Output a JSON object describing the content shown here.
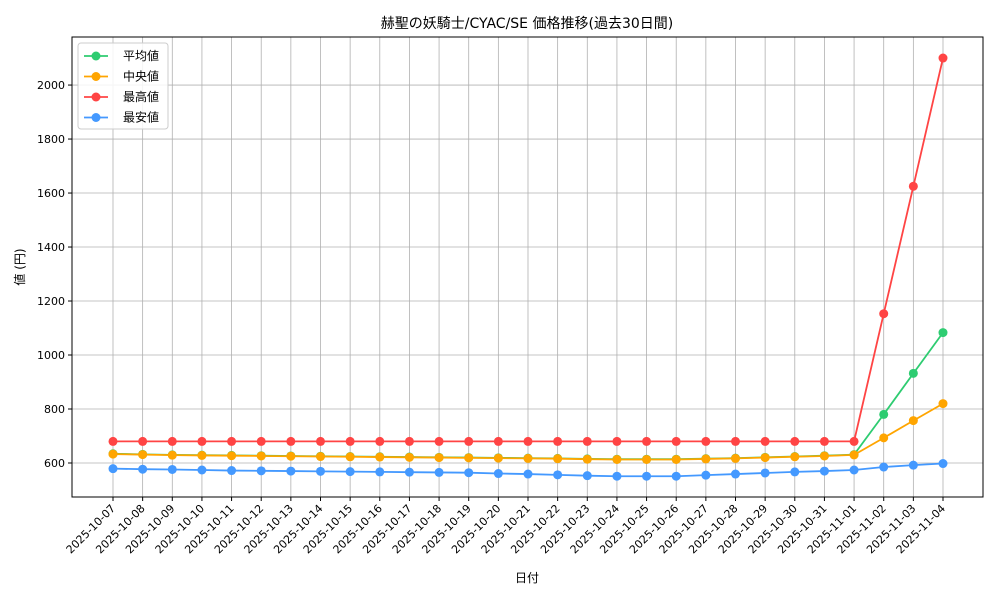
{
  "chart_data": {
    "type": "line",
    "title": "赫聖の妖騎士/CYAC/SE 価格推移(過去30日間)",
    "xlabel": "日付",
    "ylabel": "値 (円)",
    "ylim": [
      474,
      2178
    ],
    "yticks": [
      600,
      800,
      1000,
      1200,
      1400,
      1600,
      1800,
      2000
    ],
    "grid": true,
    "legend_position": "top-left",
    "categories": [
      "2025-10-07",
      "2025-10-08",
      "2025-10-09",
      "2025-10-10",
      "2025-10-11",
      "2025-10-12",
      "2025-10-13",
      "2025-10-14",
      "2025-10-15",
      "2025-10-16",
      "2025-10-17",
      "2025-10-18",
      "2025-10-19",
      "2025-10-20",
      "2025-10-21",
      "2025-10-22",
      "2025-10-23",
      "2025-10-24",
      "2025-10-25",
      "2025-10-26",
      "2025-10-27",
      "2025-10-28",
      "2025-10-29",
      "2025-10-30",
      "2025-10-31",
      "2025-11-01",
      "2025-11-02",
      "2025-11-03",
      "2025-11-04"
    ],
    "series": [
      {
        "name": "平均値",
        "color": "#2ecc71",
        "values": [
          634,
          632,
          630,
          629,
          628,
          627,
          626,
          625,
          624,
          623,
          622,
          621,
          620,
          619,
          618,
          617,
          615,
          614,
          614,
          614,
          616,
          618,
          621,
          624,
          627,
          631,
          780,
          932,
          1083
        ]
      },
      {
        "name": "中央値",
        "color": "#ffa500",
        "values": [
          633,
          631,
          629,
          628,
          627,
          626,
          625,
          624,
          623,
          622,
          621,
          620,
          619,
          618,
          617,
          616,
          614,
          613,
          613,
          613,
          615,
          617,
          620,
          623,
          626,
          630,
          693,
          757,
          820
        ]
      },
      {
        "name": "最高値",
        "color": "#ff4444",
        "values": [
          680,
          680,
          680,
          680,
          680,
          680,
          680,
          680,
          680,
          680,
          680,
          680,
          680,
          680,
          680,
          680,
          680,
          680,
          680,
          680,
          680,
          680,
          680,
          680,
          680,
          680,
          1153,
          1625,
          2100
        ]
      },
      {
        "name": "最安値",
        "color": "#4499ff",
        "values": [
          579,
          577,
          576,
          574,
          572,
          571,
          570,
          569,
          568,
          567,
          566,
          565,
          564,
          561,
          559,
          556,
          553,
          551,
          551,
          551,
          555,
          559,
          563,
          567,
          570,
          574,
          585,
          592,
          598
        ]
      }
    ]
  }
}
